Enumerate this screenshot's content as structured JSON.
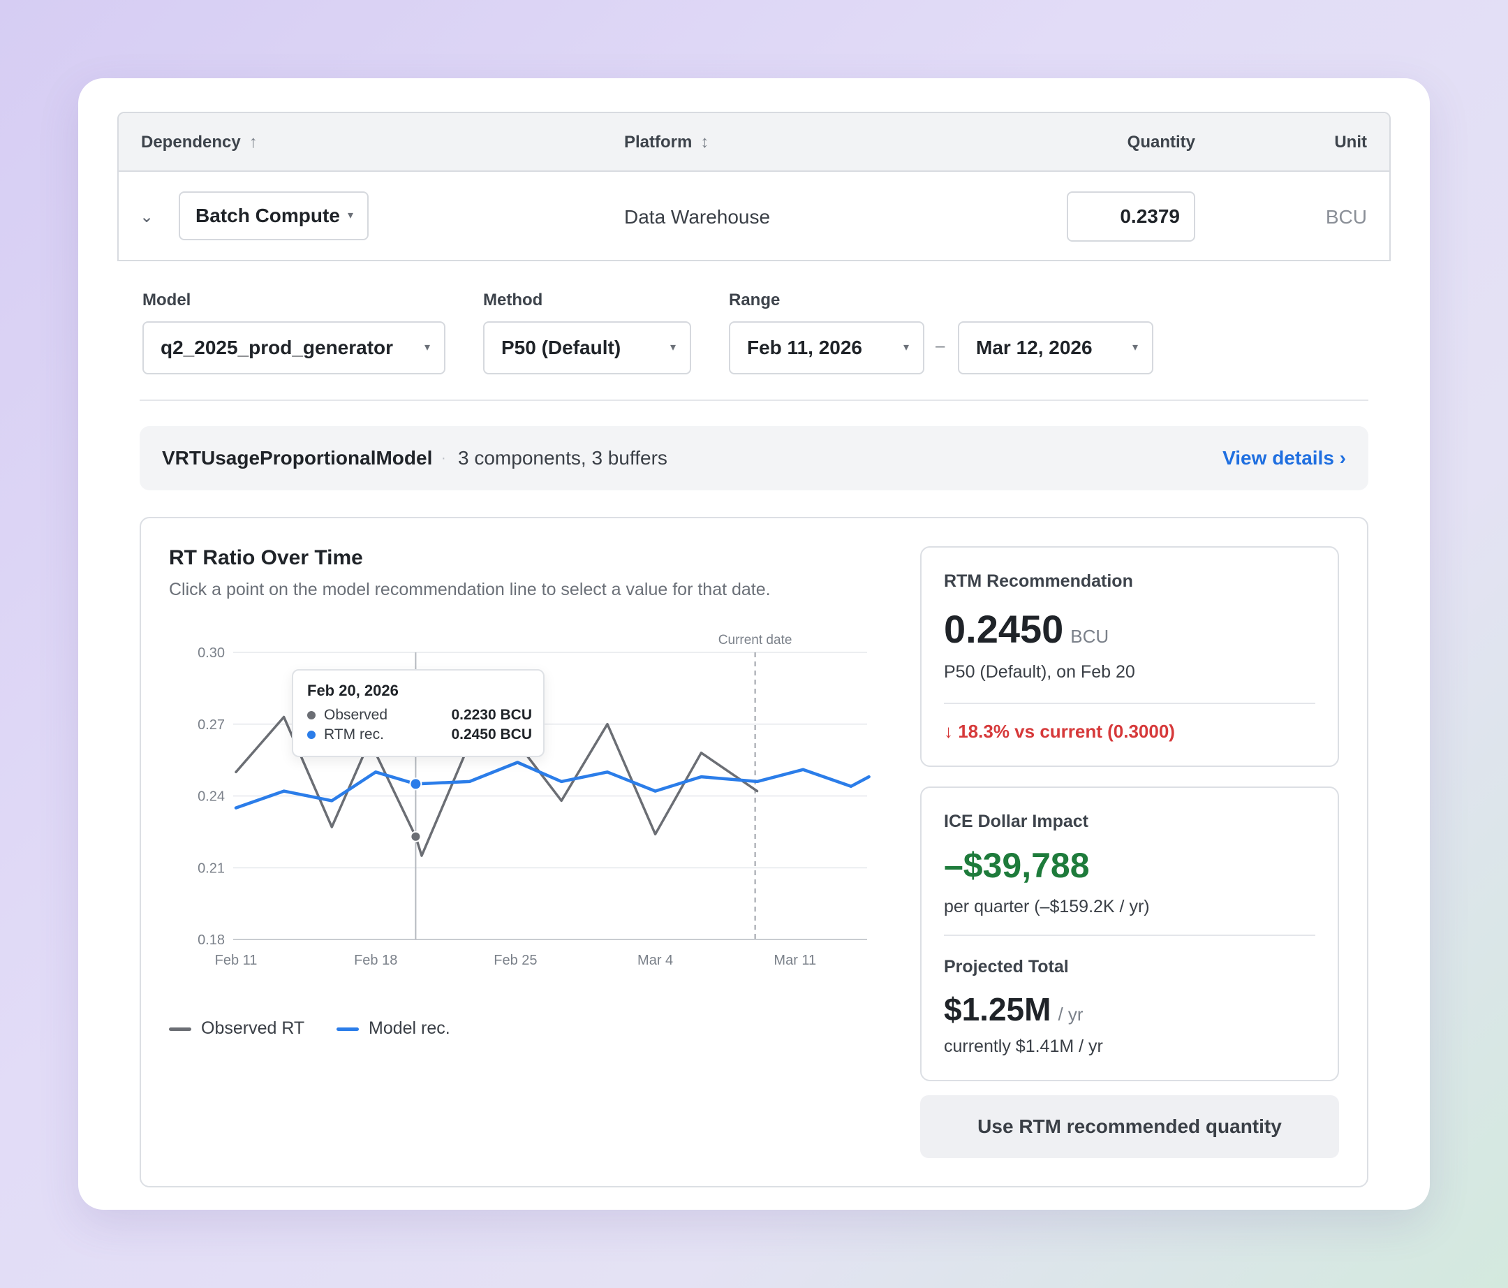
{
  "table": {
    "headers": {
      "dependency": "Dependency",
      "dependency_sort": "↑",
      "platform": "Platform",
      "platform_sort": "↕",
      "quantity": "Quantity",
      "unit": "Unit"
    },
    "row": {
      "expand_icon": "chevron-down-icon",
      "expand_glyph": "⌄",
      "dependency": "Batch Compute",
      "platform": "Data Warehouse",
      "quantity": "0.2379",
      "unit": "BCU"
    }
  },
  "controls": {
    "model_label": "Model",
    "model_value": "q2_2025_prod_generator",
    "method_label": "Method",
    "method_value": "P50 (Default)",
    "range_label": "Range",
    "range_start": "Feb 11, 2026",
    "range_sep": "–",
    "range_end": "Mar 12, 2026",
    "caret": "▾"
  },
  "model_banner": {
    "name": "VRTUsageProportionalModel",
    "separator": "·",
    "description": "3 components, 3 buffers",
    "link": "View details ›"
  },
  "chart_panel": {
    "title": "RT Ratio Over Time",
    "subtitle": "Click a point on the model recommendation line to select a value for that date.",
    "current_date_label": "Current date",
    "legend": {
      "observed": "Observed RT",
      "model": "Model rec."
    },
    "tooltip": {
      "date": "Feb 20, 2026",
      "observed_label": "Observed",
      "observed_value": "0.2230 BCU",
      "rtm_label": "RTM rec.",
      "rtm_value": "0.2450 BCU"
    }
  },
  "chart_data": {
    "type": "line",
    "x": [
      0,
      2,
      4,
      6,
      8,
      10,
      12,
      14,
      16,
      18,
      20,
      22,
      24,
      26,
      28,
      30
    ],
    "x_tick_labels": [
      {
        "day": 0,
        "label": "Feb 11"
      },
      {
        "day": 7,
        "label": "Feb 18"
      },
      {
        "day": 14,
        "label": "Feb 25"
      },
      {
        "day": 21,
        "label": "Mar 4"
      },
      {
        "day": 28,
        "label": "Mar 11"
      }
    ],
    "ylim": [
      0.18,
      0.3
    ],
    "y_ticks": [
      "0.30",
      "0.27",
      "0.24",
      "0.21",
      "0.18"
    ],
    "grid": true,
    "current_date_day": 26,
    "selected_day": 9,
    "series": [
      {
        "name": "Observed RT",
        "color": "#6b6e74",
        "points": [
          [
            0,
            0.25
          ],
          [
            2.4,
            0.273
          ],
          [
            4.8,
            0.227
          ],
          [
            6.7,
            0.263
          ],
          [
            9,
            0.223
          ],
          [
            9.3,
            0.215
          ],
          [
            11.7,
            0.262
          ],
          [
            14.1,
            0.262
          ],
          [
            16.3,
            0.238
          ],
          [
            18.6,
            0.27
          ],
          [
            21,
            0.224
          ],
          [
            23.3,
            0.258
          ],
          [
            26.1,
            0.242
          ]
        ]
      },
      {
        "name": "Model rec.",
        "color": "#2b7de9",
        "points": [
          [
            0,
            0.235
          ],
          [
            2.4,
            0.242
          ],
          [
            4.8,
            0.238
          ],
          [
            7,
            0.25
          ],
          [
            9,
            0.245
          ],
          [
            11.7,
            0.246
          ],
          [
            14.1,
            0.254
          ],
          [
            16.3,
            0.246
          ],
          [
            18.6,
            0.25
          ],
          [
            21,
            0.242
          ],
          [
            23.3,
            0.248
          ],
          [
            26.1,
            0.246
          ],
          [
            28.4,
            0.251
          ],
          [
            30.8,
            0.244
          ],
          [
            31.7,
            0.248
          ]
        ]
      }
    ]
  },
  "rtm_card": {
    "label": "RTM Recommendation",
    "value": "0.2450",
    "unit": "BCU",
    "subtext": "P50 (Default), on Feb 20",
    "delta": "↓ 18.3% vs current (0.3000)"
  },
  "impact_card": {
    "label": "ICE Dollar Impact",
    "value": "–$39,788",
    "subtext": "per quarter (–$159.2K / yr)",
    "projected_label": "Projected Total",
    "projected_value": "$1.25M",
    "projected_unit": "/ yr",
    "projected_sub": "currently $1.41M / yr"
  },
  "cta": {
    "label": "Use RTM recommended quantity"
  },
  "colors": {
    "accent": "#1f6fe0",
    "negative_delta": "#d6393a",
    "savings": "#1e7b3b"
  }
}
